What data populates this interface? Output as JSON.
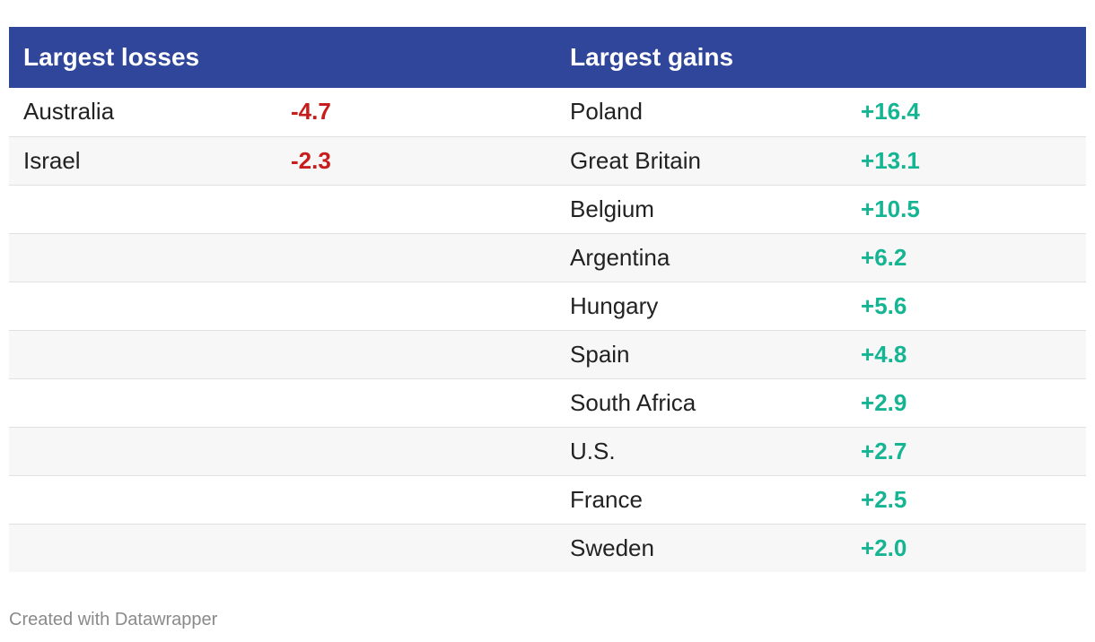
{
  "colors": {
    "header_bg": "#30469b",
    "loss": "#c71e1d",
    "gain": "#15b594"
  },
  "chart_data": {
    "type": "table",
    "columns": [
      "Largest losses",
      "",
      "Largest gains",
      ""
    ],
    "losses": [
      {
        "country": "Australia",
        "value": "-4.7"
      },
      {
        "country": "Israel",
        "value": "-2.3"
      }
    ],
    "gains": [
      {
        "country": "Poland",
        "value": "+16.4"
      },
      {
        "country": "Great Britain",
        "value": "+13.1"
      },
      {
        "country": "Belgium",
        "value": "+10.5"
      },
      {
        "country": "Argentina",
        "value": "+6.2"
      },
      {
        "country": "Hungary",
        "value": "+5.6"
      },
      {
        "country": "Spain",
        "value": "+4.8"
      },
      {
        "country": "South Africa",
        "value": "+2.9"
      },
      {
        "country": "U.S.",
        "value": "+2.7"
      },
      {
        "country": "France",
        "value": "+2.5"
      },
      {
        "country": "Sweden",
        "value": "+2.0"
      }
    ]
  },
  "footer": "Created with Datawrapper"
}
